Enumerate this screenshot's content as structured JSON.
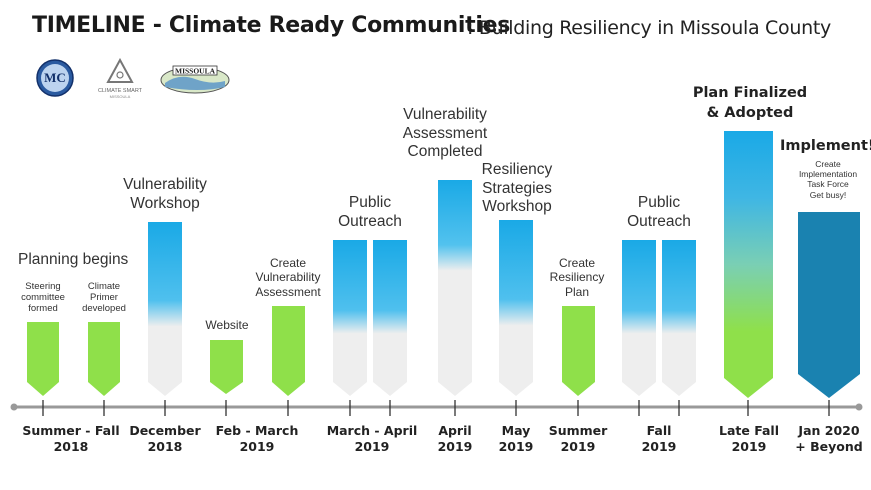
{
  "header": {
    "title": "TIMELINE - Climate Ready Communities",
    "subtitle": ": Building Resiliency in Missoula County"
  },
  "logos": {
    "mc": {
      "text": "MC",
      "icon": "missoula-county-seal"
    },
    "climate_smart": {
      "text": "CLIMATE SMART",
      "sub": "MISSOULA",
      "icon": "triangle-logo"
    },
    "missoula": {
      "text": "MISSOULA",
      "icon": "missoula-banner-logo"
    }
  },
  "colors": {
    "green": "#8fe04a",
    "green_light": "#c9f29a",
    "blue": "#1aa9e6",
    "gray": "#eeeeee",
    "teal": "#1a82b0",
    "axis": "#999999"
  },
  "phases": [
    {
      "id": "planning",
      "heading": "Planning begins",
      "notes": [
        "Steering committee formed",
        "Climate Primer developed"
      ]
    },
    {
      "id": "vuln-workshop",
      "heading": "Vulnerability Workshop"
    },
    {
      "id": "website",
      "heading": "Website"
    },
    {
      "id": "create-vuln",
      "heading": "Create Vulnerability Assessment"
    },
    {
      "id": "public-outreach-1",
      "heading": "Public Outreach"
    },
    {
      "id": "vuln-completed",
      "heading": "Vulnerability Assessment Completed"
    },
    {
      "id": "resiliency-workshop",
      "heading": "Resiliency Strategies Workshop"
    },
    {
      "id": "create-resiliency",
      "heading": "Create Resiliency Plan"
    },
    {
      "id": "public-outreach-2",
      "heading": "Public Outreach"
    },
    {
      "id": "plan-finalized",
      "heading": "Plan Finalized & Adopted"
    },
    {
      "id": "implement",
      "heading": "Implement!",
      "notes": [
        "Create Implementation Task Force",
        "Get busy!"
      ]
    }
  ],
  "labels": {
    "steering": [
      "Steering",
      "committee",
      "formed"
    ],
    "primer": [
      "Climate",
      "Primer",
      "developed"
    ],
    "planning": "Planning begins",
    "vuln_workshop": [
      "Vulnerability",
      "Workshop"
    ],
    "website": "Website",
    "create_vuln": [
      "Create",
      "Vulnerability",
      "Assessment"
    ],
    "outreach1": [
      "Public",
      "Outreach"
    ],
    "vuln_completed": [
      "Vulnerability",
      "Assessment",
      "Completed"
    ],
    "resiliency_workshop": [
      "Resiliency",
      "Strategies",
      "Workshop"
    ],
    "create_resiliency": [
      "Create",
      "Resiliency",
      "Plan"
    ],
    "outreach2": [
      "Public",
      "Outreach"
    ],
    "plan_finalized": [
      "Plan Finalized",
      "& Adopted"
    ],
    "implement": "Implement!",
    "implement_notes": [
      "Create",
      "Implementation",
      "Task Force",
      "Get busy!"
    ]
  },
  "axis": [
    {
      "line1": "Summer - Fall",
      "line2": "2018"
    },
    {
      "line1": "December",
      "line2": "2018"
    },
    {
      "line1": "Feb - March",
      "line2": "2019"
    },
    {
      "line1": "March - April",
      "line2": "2019"
    },
    {
      "line1": "April",
      "line2": "2019"
    },
    {
      "line1": "May",
      "line2": "2019"
    },
    {
      "line1": "Summer",
      "line2": "2019"
    },
    {
      "line1": "Fall",
      "line2": "2019"
    },
    {
      "line1": "Late Fall",
      "line2": "2019"
    },
    {
      "line1": "Jan 2020",
      "line2": "+ Beyond"
    }
  ]
}
